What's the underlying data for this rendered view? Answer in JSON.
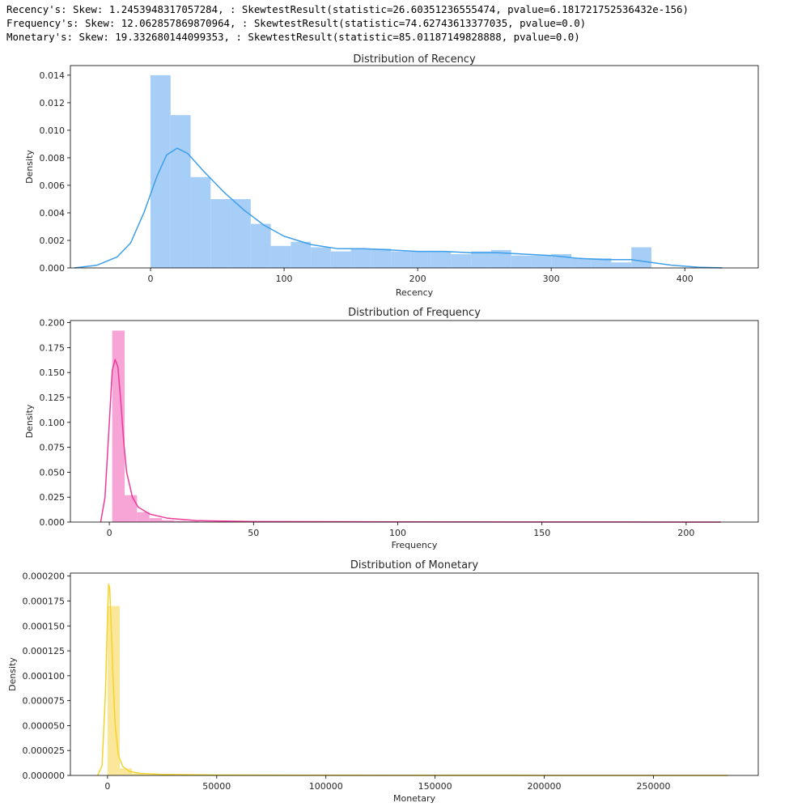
{
  "output_lines": [
    "Recency's: Skew: 1.2453948317057284, : SkewtestResult(statistic=26.60351236555474, pvalue=6.181721752536432e-156)",
    "Frequency's: Skew: 12.062857869870964, : SkewtestResult(statistic=74.62743613377035, pvalue=0.0)",
    "Monetary's: Skew: 19.332680144099353, : SkewtestResult(statistic=85.01187149828888, pvalue=0.0)"
  ],
  "chart_data": [
    {
      "type": "bar",
      "title": "Distribution of Recency",
      "xlabel": "Recency",
      "ylabel": "Density",
      "xlim": [
        -60,
        455
      ],
      "ylim": [
        0,
        0.0147
      ],
      "xticks": [
        0,
        100,
        200,
        300,
        400
      ],
      "xtick_labels": [
        "0",
        "100",
        "200",
        "300",
        "400"
      ],
      "yticks": [
        0,
        0.002,
        0.004,
        0.006,
        0.008,
        0.01,
        0.012,
        0.014
      ],
      "ytick_labels": [
        "0.000",
        "0.002",
        "0.004",
        "0.006",
        "0.008",
        "0.010",
        "0.012",
        "0.014"
      ],
      "bar_color": "#a6cef7",
      "line_color": "#3f9fe8",
      "bins": [
        {
          "x0": 0,
          "x1": 15,
          "value": 0.014
        },
        {
          "x0": 15,
          "x1": 30,
          "value": 0.0111
        },
        {
          "x0": 30,
          "x1": 45,
          "value": 0.0066
        },
        {
          "x0": 45,
          "x1": 60,
          "value": 0.005
        },
        {
          "x0": 60,
          "x1": 75,
          "value": 0.005
        },
        {
          "x0": 75,
          "x1": 90,
          "value": 0.0032
        },
        {
          "x0": 90,
          "x1": 105,
          "value": 0.0016
        },
        {
          "x0": 105,
          "x1": 120,
          "value": 0.0019
        },
        {
          "x0": 120,
          "x1": 135,
          "value": 0.0015
        },
        {
          "x0": 135,
          "x1": 150,
          "value": 0.0012
        },
        {
          "x0": 150,
          "x1": 165,
          "value": 0.0014
        },
        {
          "x0": 165,
          "x1": 180,
          "value": 0.0014
        },
        {
          "x0": 180,
          "x1": 195,
          "value": 0.0012
        },
        {
          "x0": 195,
          "x1": 210,
          "value": 0.0012
        },
        {
          "x0": 210,
          "x1": 225,
          "value": 0.0012
        },
        {
          "x0": 225,
          "x1": 240,
          "value": 0.001
        },
        {
          "x0": 240,
          "x1": 255,
          "value": 0.0012
        },
        {
          "x0": 255,
          "x1": 270,
          "value": 0.0013
        },
        {
          "x0": 270,
          "x1": 285,
          "value": 0.0009
        },
        {
          "x0": 285,
          "x1": 300,
          "value": 0.0009
        },
        {
          "x0": 300,
          "x1": 315,
          "value": 0.001
        },
        {
          "x0": 315,
          "x1": 330,
          "value": 0.0007
        },
        {
          "x0": 330,
          "x1": 345,
          "value": 0.0007
        },
        {
          "x0": 345,
          "x1": 360,
          "value": 0.0004
        },
        {
          "x0": 360,
          "x1": 375,
          "value": 0.0015
        }
      ],
      "kde": {
        "x": [
          -57,
          -40,
          -25,
          -15,
          -5,
          5,
          12,
          20,
          28,
          40,
          55,
          70,
          85,
          100,
          120,
          140,
          160,
          180,
          200,
          220,
          240,
          260,
          280,
          300,
          320,
          340,
          360,
          375,
          390,
          410,
          428
        ],
        "y": [
          0.0,
          0.0002,
          0.0008,
          0.0018,
          0.004,
          0.0067,
          0.0082,
          0.0087,
          0.0083,
          0.007,
          0.0055,
          0.0042,
          0.0031,
          0.0023,
          0.0017,
          0.0014,
          0.0014,
          0.0013,
          0.0012,
          0.0012,
          0.0011,
          0.0011,
          0.001,
          0.0009,
          0.0007,
          0.0006,
          0.0006,
          0.0004,
          0.0002,
          5e-05,
          0.0
        ]
      }
    },
    {
      "type": "bar",
      "title": "Distribution of Frequency",
      "xlabel": "Frequency",
      "ylabel": "Density",
      "xlim": [
        -13.5,
        225
      ],
      "ylim": [
        0,
        0.2021
      ],
      "xticks": [
        0,
        50,
        100,
        150,
        200
      ],
      "xtick_labels": [
        "0",
        "50",
        "100",
        "150",
        "200"
      ],
      "yticks": [
        0,
        0.025,
        0.05,
        0.075,
        0.1,
        0.125,
        0.15,
        0.175,
        0.2
      ],
      "ytick_labels": [
        "0.000",
        "0.025",
        "0.050",
        "0.075",
        "0.100",
        "0.125",
        "0.150",
        "0.175",
        "0.200"
      ],
      "bar_color": "#f7a4d6",
      "line_color": "#ee3a98",
      "bins": [
        {
          "x0": 1,
          "x1": 5.3,
          "value": 0.192
        },
        {
          "x0": 5.3,
          "x1": 9.6,
          "value": 0.027
        },
        {
          "x0": 9.6,
          "x1": 13.9,
          "value": 0.01
        },
        {
          "x0": 13.9,
          "x1": 18.2,
          "value": 0.004
        },
        {
          "x0": 18.2,
          "x1": 22.5,
          "value": 0.002
        },
        {
          "x0": 22.5,
          "x1": 26.8,
          "value": 0.0012
        },
        {
          "x0": 26.8,
          "x1": 31.1,
          "value": 0.0008
        },
        {
          "x0": 31.1,
          "x1": 40,
          "value": 0.0005
        },
        {
          "x0": 40,
          "x1": 60,
          "value": 0.0002
        },
        {
          "x0": 60,
          "x1": 210,
          "value": 0.0001
        }
      ],
      "kde": {
        "x": [
          -3,
          -1.5,
          0,
          1,
          2,
          3,
          4,
          5,
          6,
          8,
          10,
          14,
          20,
          30,
          50,
          100,
          150,
          200,
          212
        ],
        "y": [
          0.0,
          0.025,
          0.1,
          0.152,
          0.163,
          0.155,
          0.12,
          0.08,
          0.05,
          0.025,
          0.015,
          0.008,
          0.004,
          0.0015,
          0.0005,
          0.0002,
          0.0001,
          5e-05,
          0.0
        ]
      }
    },
    {
      "type": "bar",
      "title": "Distribution of Monetary",
      "xlabel": "Monetary",
      "ylabel": "Density",
      "xlim": [
        -17000,
        298000
      ],
      "ylim": [
        0,
        0.000203
      ],
      "xticks": [
        0,
        50000,
        100000,
        150000,
        200000,
        250000
      ],
      "xtick_labels": [
        "0",
        "50000",
        "100000",
        "150000",
        "200000",
        "250000"
      ],
      "yticks": [
        0,
        2.5e-05,
        5e-05,
        7.5e-05,
        0.0001,
        0.000125,
        0.00015,
        0.000175,
        0.0002
      ],
      "ytick_labels": [
        "0.000000",
        "0.000025",
        "0.000050",
        "0.000075",
        "0.000100",
        "0.000125",
        "0.000150",
        "0.000175",
        "0.000200"
      ],
      "bar_color": "#fbe79a",
      "line_color": "#f2d42b",
      "bins": [
        {
          "x0": 0,
          "x1": 5600,
          "value": 0.00017
        },
        {
          "x0": 5600,
          "x1": 11200,
          "value": 7e-06
        },
        {
          "x0": 11200,
          "x1": 16800,
          "value": 2e-06
        },
        {
          "x0": 16800,
          "x1": 30000,
          "value": 1e-06
        },
        {
          "x0": 30000,
          "x1": 280000,
          "value": 3e-07
        }
      ],
      "kde": {
        "x": [
          -4500,
          -2500,
          -1000,
          0,
          500,
          1000,
          1500,
          2500,
          3500,
          5000,
          7000,
          10000,
          15000,
          25000,
          50000,
          100000,
          150000,
          200000,
          250000,
          284000
        ],
        "y": [
          0.0,
          1e-05,
          8e-05,
          0.00016,
          0.000192,
          0.000188,
          0.00016,
          0.0001,
          5e-05,
          2e-05,
          9e-06,
          4e-06,
          2e-06,
          1e-06,
          4e-07,
          2e-07,
          1e-07,
          5e-08,
          3e-08,
          0.0
        ]
      }
    }
  ]
}
